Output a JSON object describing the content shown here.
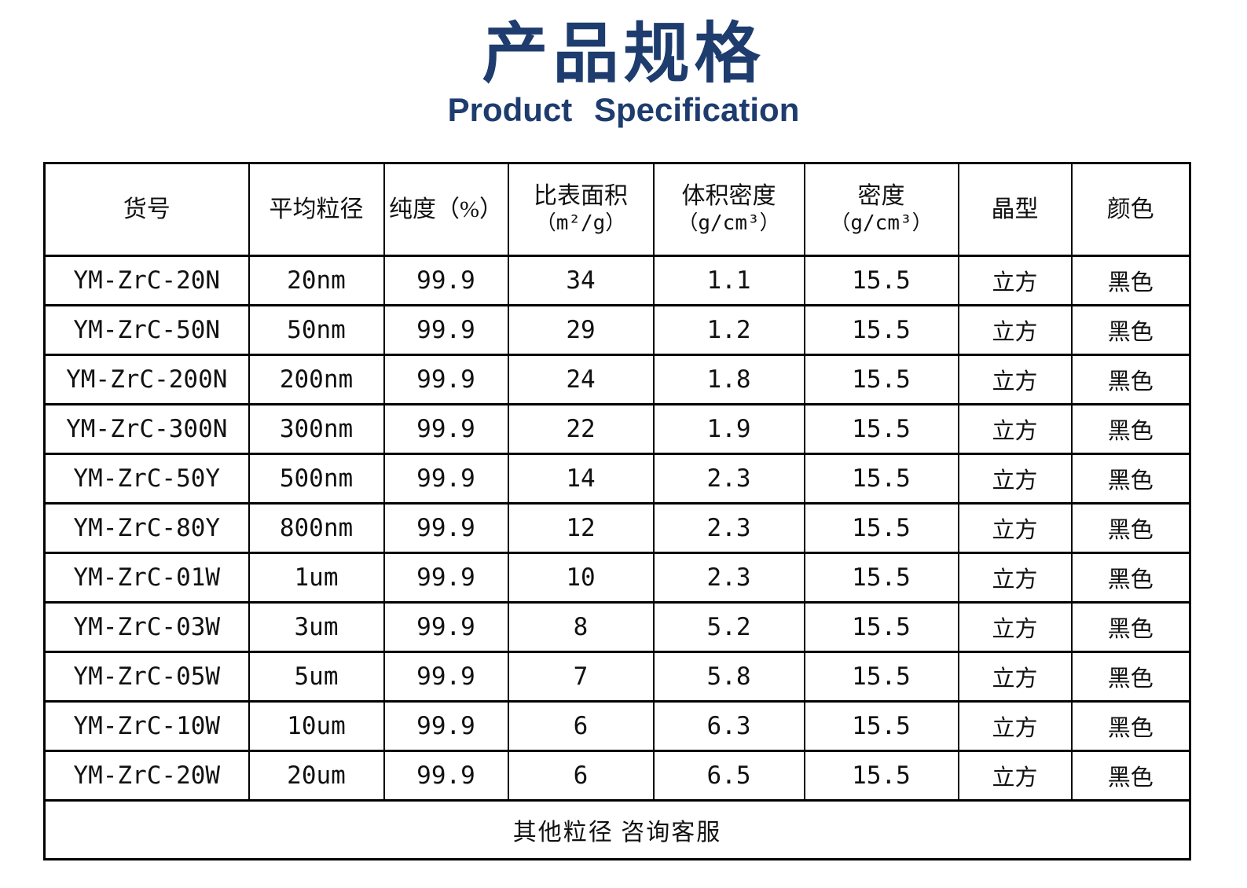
{
  "page": {
    "title": "产品规格",
    "subtitle": "Product Specification",
    "title_color": "#1e3c6e",
    "background_color": "#ffffff",
    "table_border_color": "#000000"
  },
  "table": {
    "columns": [
      {
        "label": "货号",
        "sub": ""
      },
      {
        "label": "平均粒径",
        "sub": ""
      },
      {
        "label": "纯度（%）",
        "sub": ""
      },
      {
        "label": "比表面积",
        "sub": "（m²/g）"
      },
      {
        "label": "体积密度",
        "sub": "（g/cm³）"
      },
      {
        "label": "密度",
        "sub": "（g/cm³）"
      },
      {
        "label": "晶型",
        "sub": ""
      },
      {
        "label": "颜色",
        "sub": ""
      }
    ],
    "rows": [
      [
        "YM-ZrC-20N",
        "20nm",
        "99.9",
        "34",
        "1.1",
        "15.5",
        "立方",
        "黑色"
      ],
      [
        "YM-ZrC-50N",
        "50nm",
        "99.9",
        "29",
        "1.2",
        "15.5",
        "立方",
        "黑色"
      ],
      [
        "YM-ZrC-200N",
        "200nm",
        "99.9",
        "24",
        "1.8",
        "15.5",
        "立方",
        "黑色"
      ],
      [
        "YM-ZrC-300N",
        "300nm",
        "99.9",
        "22",
        "1.9",
        "15.5",
        "立方",
        "黑色"
      ],
      [
        "YM-ZrC-50Y",
        "500nm",
        "99.9",
        "14",
        "2.3",
        "15.5",
        "立方",
        "黑色"
      ],
      [
        "YM-ZrC-80Y",
        "800nm",
        "99.9",
        "12",
        "2.3",
        "15.5",
        "立方",
        "黑色"
      ],
      [
        "YM-ZrC-01W",
        "1um",
        "99.9",
        "10",
        "2.3",
        "15.5",
        "立方",
        "黑色"
      ],
      [
        "YM-ZrC-03W",
        "3um",
        "99.9",
        "8",
        "5.2",
        "15.5",
        "立方",
        "黑色"
      ],
      [
        "YM-ZrC-05W",
        "5um",
        "99.9",
        "7",
        "5.8",
        "15.5",
        "立方",
        "黑色"
      ],
      [
        "YM-ZrC-10W",
        "10um",
        "99.9",
        "6",
        "6.3",
        "15.5",
        "立方",
        "黑色"
      ],
      [
        "YM-ZrC-20W",
        "20um",
        "99.9",
        "6",
        "6.5",
        "15.5",
        "立方",
        "黑色"
      ]
    ],
    "footer_note": "其他粒径 咨询客服"
  }
}
